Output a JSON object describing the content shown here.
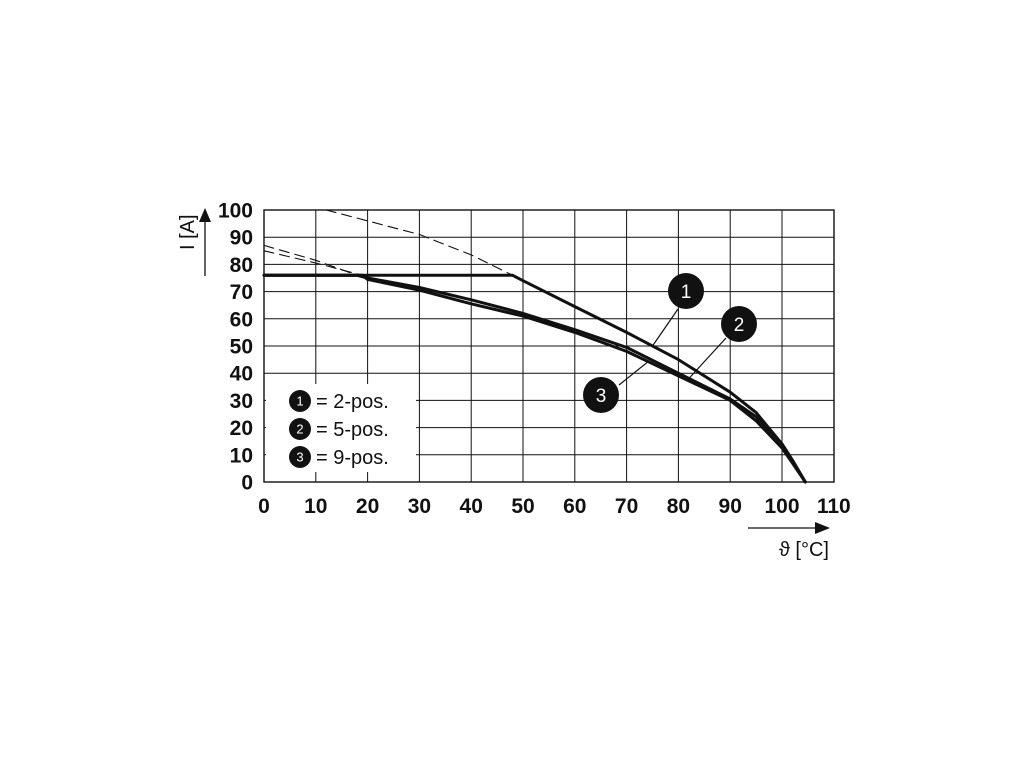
{
  "chart_data": {
    "type": "line",
    "xlabel": "ϑ [°C]",
    "ylabel": "I [A]",
    "xlim": [
      0,
      110
    ],
    "ylim": [
      0,
      100
    ],
    "x_ticks": [
      0,
      10,
      20,
      30,
      40,
      50,
      60,
      70,
      80,
      90,
      100,
      110
    ],
    "y_ticks": [
      0,
      10,
      20,
      30,
      40,
      50,
      60,
      70,
      80,
      90,
      100
    ],
    "grid": true,
    "legend_position": "bottom-left",
    "legend": [
      {
        "marker": "1",
        "label": "= 2-pos."
      },
      {
        "marker": "2",
        "label": "= 5-pos."
      },
      {
        "marker": "3",
        "label": "= 9-pos."
      }
    ],
    "series": [
      {
        "marker": "1",
        "style": "solid",
        "points": [
          [
            0,
            76
          ],
          [
            48,
            76
          ],
          [
            50,
            74
          ],
          [
            60,
            64.5
          ],
          [
            70,
            55
          ],
          [
            80,
            45
          ],
          [
            90,
            33
          ],
          [
            95,
            25.5
          ],
          [
            100,
            14
          ],
          [
            102,
            8
          ],
          [
            104.5,
            0
          ]
        ]
      },
      {
        "marker": "1",
        "style": "dashed",
        "points": [
          [
            12,
            100
          ],
          [
            20,
            96
          ],
          [
            30,
            91
          ],
          [
            40,
            83.5
          ],
          [
            48,
            76
          ]
        ]
      },
      {
        "marker": "2",
        "style": "solid",
        "points": [
          [
            0,
            76
          ],
          [
            18,
            76
          ],
          [
            20,
            75
          ],
          [
            30,
            71.5
          ],
          [
            40,
            67
          ],
          [
            50,
            62
          ],
          [
            60,
            56
          ],
          [
            70,
            49.5
          ],
          [
            80,
            40
          ],
          [
            90,
            30.5
          ],
          [
            95,
            24
          ],
          [
            100,
            14
          ],
          [
            102,
            8
          ],
          [
            104.5,
            0
          ]
        ]
      },
      {
        "marker": "2",
        "style": "dashed",
        "points": [
          [
            0,
            87
          ],
          [
            10,
            81.5
          ],
          [
            18,
            76
          ]
        ]
      },
      {
        "marker": "3",
        "style": "solid",
        "points": [
          [
            0,
            76
          ],
          [
            19,
            76
          ],
          [
            20,
            74.5
          ],
          [
            30,
            70.5
          ],
          [
            40,
            65.5
          ],
          [
            50,
            61
          ],
          [
            60,
            55
          ],
          [
            70,
            48
          ],
          [
            80,
            39
          ],
          [
            90,
            30
          ],
          [
            95,
            22.5
          ],
          [
            100,
            12.5
          ],
          [
            102,
            7
          ],
          [
            104.5,
            0
          ]
        ]
      },
      {
        "marker": "3",
        "style": "dashed",
        "points": [
          [
            0,
            85
          ],
          [
            10,
            80.5
          ],
          [
            19,
            76
          ]
        ]
      }
    ],
    "annotations": [
      {
        "marker": "1",
        "target": [
          75,
          50
        ]
      },
      {
        "marker": "2",
        "target": [
          82,
          38
        ]
      },
      {
        "marker": "3",
        "target": [
          74,
          44
        ]
      }
    ]
  }
}
